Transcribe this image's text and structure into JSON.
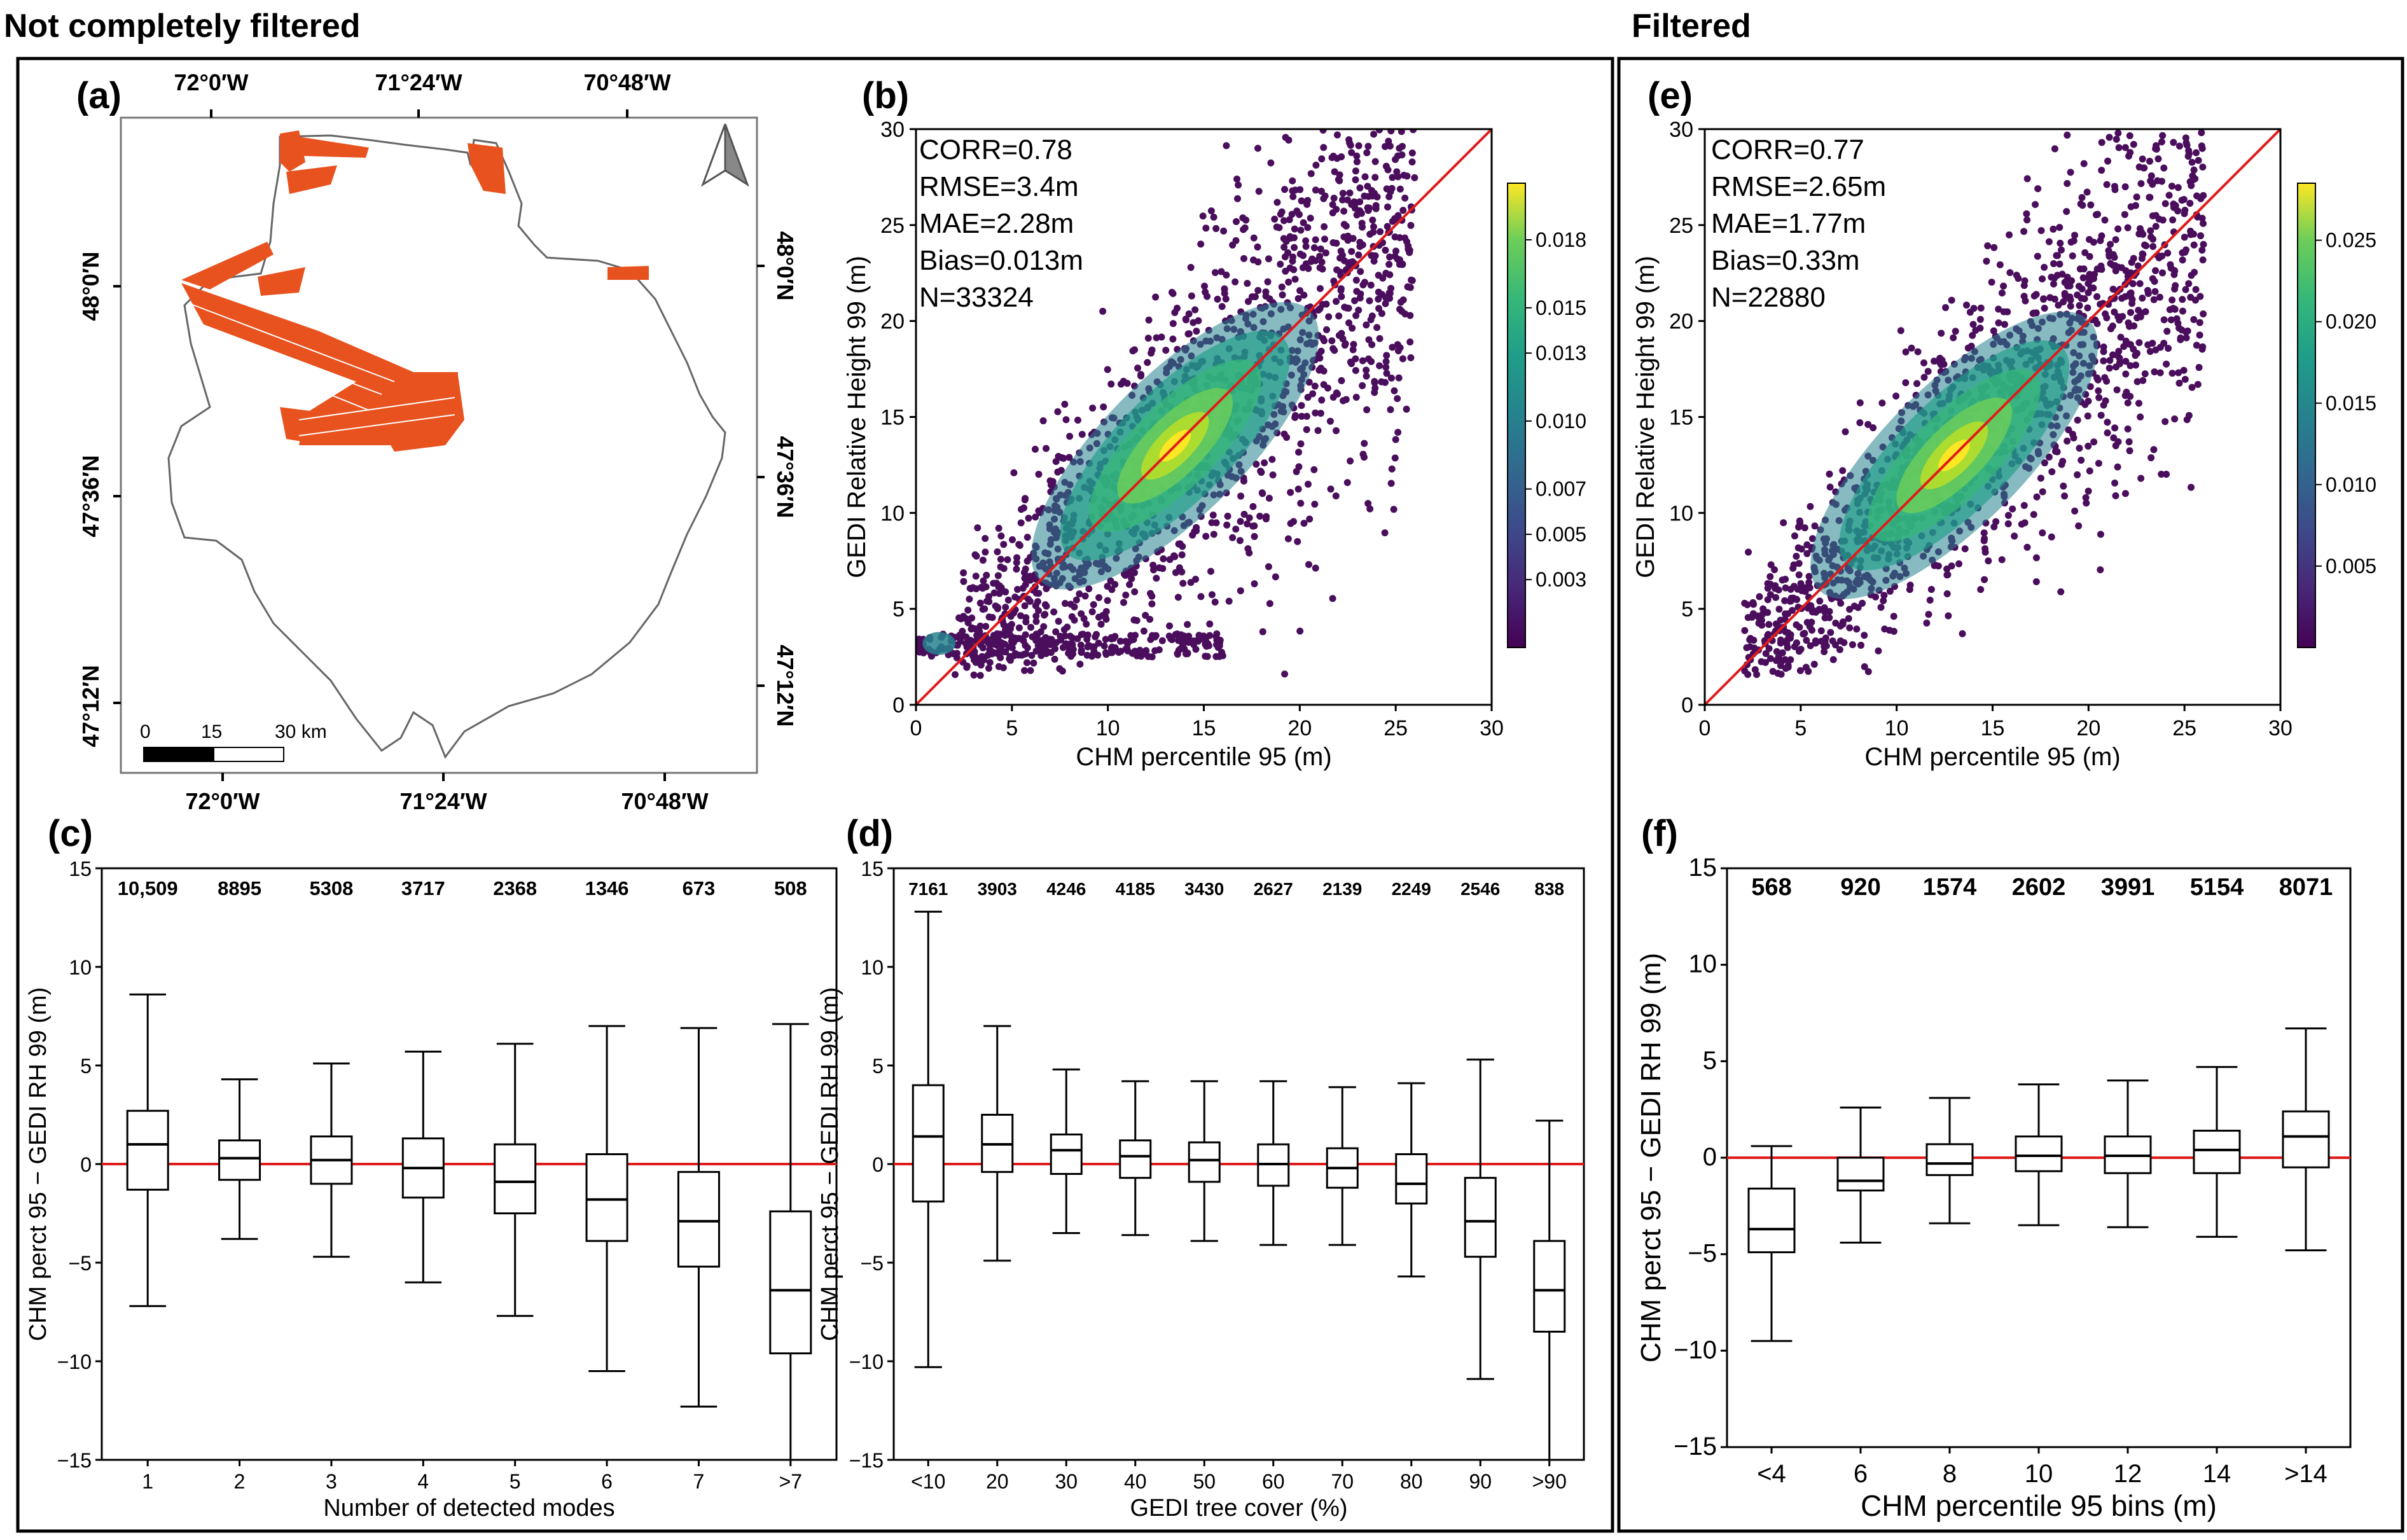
{
  "headers": {
    "left": "Not completely filtered",
    "right": "Filtered"
  },
  "colors": {
    "accent": "#e8521f",
    "ref_line": "#e01b1b",
    "boundary": "#666666"
  },
  "panel_a": {
    "label": "(a)",
    "top_ticks": [
      "72°0′W",
      "71°24′W",
      "70°48′W"
    ],
    "bottom_ticks": [
      "72°0′W",
      "71°24′W",
      "70°48′W"
    ],
    "left_ticks": [
      "48°0′N",
      "47°36′N",
      "47°12′N"
    ],
    "right_ticks": [
      "48°0′N",
      "47°36′N",
      "47°12′N"
    ],
    "scalebar": {
      "t0": "0",
      "t1": "15",
      "t2": "30 km"
    }
  },
  "chart_data": [
    {
      "id": "b",
      "type": "scatter",
      "label": "(b)",
      "stats": [
        "CORR=0.78",
        "RMSE=3.4m",
        "MAE=2.28m",
        "Bias=0.013m",
        "N=33324"
      ],
      "xlabel": "CHM percentile 95 (m)",
      "ylabel": "GEDI Relative Height 99 (m)",
      "xlim": [
        0,
        30
      ],
      "ylim": [
        0,
        30
      ],
      "xticks": [
        "0",
        "5",
        "10",
        "15",
        "20",
        "25",
        "30"
      ],
      "yticks": [
        "0",
        "5",
        "10",
        "15",
        "20",
        "25",
        "30"
      ],
      "colorbar": {
        "min": 0.0,
        "max": 0.0205,
        "ticks": [
          "0.003",
          "0.005",
          "0.007",
          "0.010",
          "0.013",
          "0.015",
          "0.018"
        ]
      },
      "density_center": [
        13.5,
        13.5
      ]
    },
    {
      "id": "e",
      "type": "scatter",
      "label": "(e)",
      "stats": [
        "CORR=0.77",
        "RMSE=2.65m",
        "MAE=1.77m",
        "Bias=0.33m",
        "N=22880"
      ],
      "xlabel": "CHM percentile 95 (m)",
      "ylabel": "GEDI Relative Height 99 (m)",
      "xlim": [
        0,
        30
      ],
      "ylim": [
        0,
        30
      ],
      "xticks": [
        "0",
        "5",
        "10",
        "15",
        "20",
        "25",
        "30"
      ],
      "yticks": [
        "0",
        "5",
        "10",
        "15",
        "20",
        "25",
        "30"
      ],
      "colorbar": {
        "min": 0.0,
        "max": 0.0285,
        "ticks": [
          "0.005",
          "0.010",
          "0.015",
          "0.020",
          "0.025"
        ]
      },
      "density_center": [
        13,
        13
      ]
    },
    {
      "id": "c",
      "type": "boxplot",
      "label": "(c)",
      "xlabel": "Number of detected modes",
      "ylabel": "CHM perct 95 − GEDI RH 99 (m)",
      "ylim": [
        -15,
        15
      ],
      "yticks": [
        "−15",
        "−10",
        "−5",
        "0",
        "5",
        "10",
        "15"
      ],
      "categories": [
        "1",
        "2",
        "3",
        "4",
        "5",
        "6",
        "7",
        ">7"
      ],
      "counts": [
        "10,509",
        "8895",
        "5308",
        "3717",
        "2368",
        "1346",
        "673",
        "508"
      ],
      "boxes": [
        {
          "low": -7.2,
          "q1": -1.3,
          "med": 1.0,
          "q3": 2.7,
          "high": 8.6
        },
        {
          "low": -3.8,
          "q1": -0.8,
          "med": 0.3,
          "q3": 1.2,
          "high": 4.3
        },
        {
          "low": -4.7,
          "q1": -1.0,
          "med": 0.2,
          "q3": 1.4,
          "high": 5.1
        },
        {
          "low": -6.0,
          "q1": -1.7,
          "med": -0.2,
          "q3": 1.3,
          "high": 5.7
        },
        {
          "low": -7.7,
          "q1": -2.5,
          "med": -0.9,
          "q3": 1.0,
          "high": 6.1
        },
        {
          "low": -10.5,
          "q1": -3.9,
          "med": -1.8,
          "q3": 0.5,
          "high": 7.0
        },
        {
          "low": -12.3,
          "q1": -5.2,
          "med": -2.9,
          "q3": -0.4,
          "high": 6.9
        },
        {
          "low": -15.0,
          "q1": -9.6,
          "med": -6.4,
          "q3": -2.4,
          "high": 7.1
        }
      ]
    },
    {
      "id": "d",
      "type": "boxplot",
      "label": "(d)",
      "xlabel": "GEDI tree cover (%)",
      "ylabel": "CHM perct 95 − GEDI RH 99 (m)",
      "ylim": [
        -15,
        15
      ],
      "yticks": [
        "−15",
        "−10",
        "−5",
        "0",
        "5",
        "10",
        "15"
      ],
      "categories": [
        "<10",
        "20",
        "30",
        "40",
        "50",
        "60",
        "70",
        "80",
        "90",
        ">90"
      ],
      "counts": [
        "7161",
        "3903",
        "4246",
        "4185",
        "3430",
        "2627",
        "2139",
        "2249",
        "2546",
        "838"
      ],
      "boxes": [
        {
          "low": -10.3,
          "q1": -1.9,
          "med": 1.4,
          "q3": 4.0,
          "high": 12.8
        },
        {
          "low": -4.9,
          "q1": -0.4,
          "med": 1.0,
          "q3": 2.5,
          "high": 7.0
        },
        {
          "low": -3.5,
          "q1": -0.5,
          "med": 0.7,
          "q3": 1.5,
          "high": 4.8
        },
        {
          "low": -3.6,
          "q1": -0.7,
          "med": 0.4,
          "q3": 1.2,
          "high": 4.2
        },
        {
          "low": -3.9,
          "q1": -0.9,
          "med": 0.2,
          "q3": 1.1,
          "high": 4.2
        },
        {
          "low": -4.1,
          "q1": -1.1,
          "med": 0.0,
          "q3": 1.0,
          "high": 4.2
        },
        {
          "low": -4.1,
          "q1": -1.2,
          "med": -0.2,
          "q3": 0.8,
          "high": 3.9
        },
        {
          "low": -5.7,
          "q1": -2.0,
          "med": -1.0,
          "q3": 0.5,
          "high": 4.1
        },
        {
          "low": -10.9,
          "q1": -4.7,
          "med": -2.9,
          "q3": -0.7,
          "high": 5.3
        },
        {
          "low": -15.0,
          "q1": -8.5,
          "med": -6.4,
          "q3": -3.9,
          "high": 2.2
        }
      ]
    },
    {
      "id": "f",
      "type": "boxplot",
      "label": "(f)",
      "xlabel": "CHM percentile 95 bins (m)",
      "ylabel": "CHM perct 95 − GEDI RH 99 (m)",
      "ylim": [
        -15,
        15
      ],
      "yticks": [
        "−15",
        "−10",
        "−5",
        "0",
        "5",
        "10",
        "15"
      ],
      "categories": [
        "<4",
        "6",
        "8",
        "10",
        "12",
        "14",
        ">14"
      ],
      "counts": [
        "568",
        "920",
        "1574",
        "2602",
        "3991",
        "5154",
        "8071"
      ],
      "boxes": [
        {
          "low": -9.5,
          "q1": -4.9,
          "med": -3.7,
          "q3": -1.6,
          "high": 0.6
        },
        {
          "low": -4.4,
          "q1": -1.7,
          "med": -1.2,
          "q3": 0.0,
          "high": 2.6
        },
        {
          "low": -3.4,
          "q1": -0.9,
          "med": -0.3,
          "q3": 0.7,
          "high": 3.1
        },
        {
          "low": -3.5,
          "q1": -0.7,
          "med": 0.1,
          "q3": 1.1,
          "high": 3.8
        },
        {
          "low": -3.6,
          "q1": -0.8,
          "med": 0.1,
          "q3": 1.1,
          "high": 4.0
        },
        {
          "low": -4.1,
          "q1": -0.8,
          "med": 0.4,
          "q3": 1.4,
          "high": 4.7
        },
        {
          "low": -4.8,
          "q1": -0.5,
          "med": 1.1,
          "q3": 2.4,
          "high": 6.7
        }
      ]
    }
  ]
}
